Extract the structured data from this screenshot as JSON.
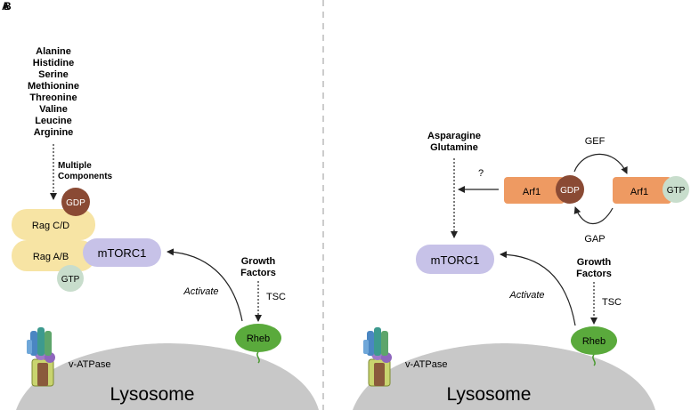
{
  "panel_a": {
    "label": "A",
    "amino_acids": [
      "Alanine",
      "Histidine",
      "Serine",
      "Methionine",
      "Threonine",
      "Valine",
      "Leucine",
      "Arginine"
    ],
    "multiple_components": [
      "Multiple",
      "Components"
    ],
    "gdp": "GDP",
    "gtp": "GTP",
    "rag_cd": "Rag C/D",
    "rag_ab": "Rag A/B",
    "mtorc1": "mTORC1",
    "growth_factors": [
      "Growth",
      "Factors"
    ],
    "tsc": "TSC",
    "rheb": "Rheb",
    "activate": "Activate",
    "vatpase": "v-ATPase",
    "lysosome": "Lysosome"
  },
  "panel_b": {
    "label": "B",
    "amino_acids": [
      "Asparagine",
      "Glutamine"
    ],
    "question": "?",
    "gef": "GEF",
    "gap": "GAP",
    "arf1_left": "Arf1",
    "arf1_right": "Arf1",
    "gdp": "GDP",
    "gtp": "GTP",
    "mtorc1": "mTORC1",
    "growth_factors": [
      "Growth",
      "Factors"
    ],
    "tsc": "TSC",
    "rheb": "Rheb",
    "activate": "Activate",
    "vatpase": "v-ATPase",
    "lysosome": "Lysosome"
  },
  "colors": {
    "rag": "#f7e4a4",
    "mtorc1": "#c7c2e8",
    "gdp": "#8a4a34",
    "gtp": "#c8ddcc",
    "rheb": "#5aaa3c",
    "arf1": "#ee9a62",
    "lysosome": "#c8c8c8"
  }
}
